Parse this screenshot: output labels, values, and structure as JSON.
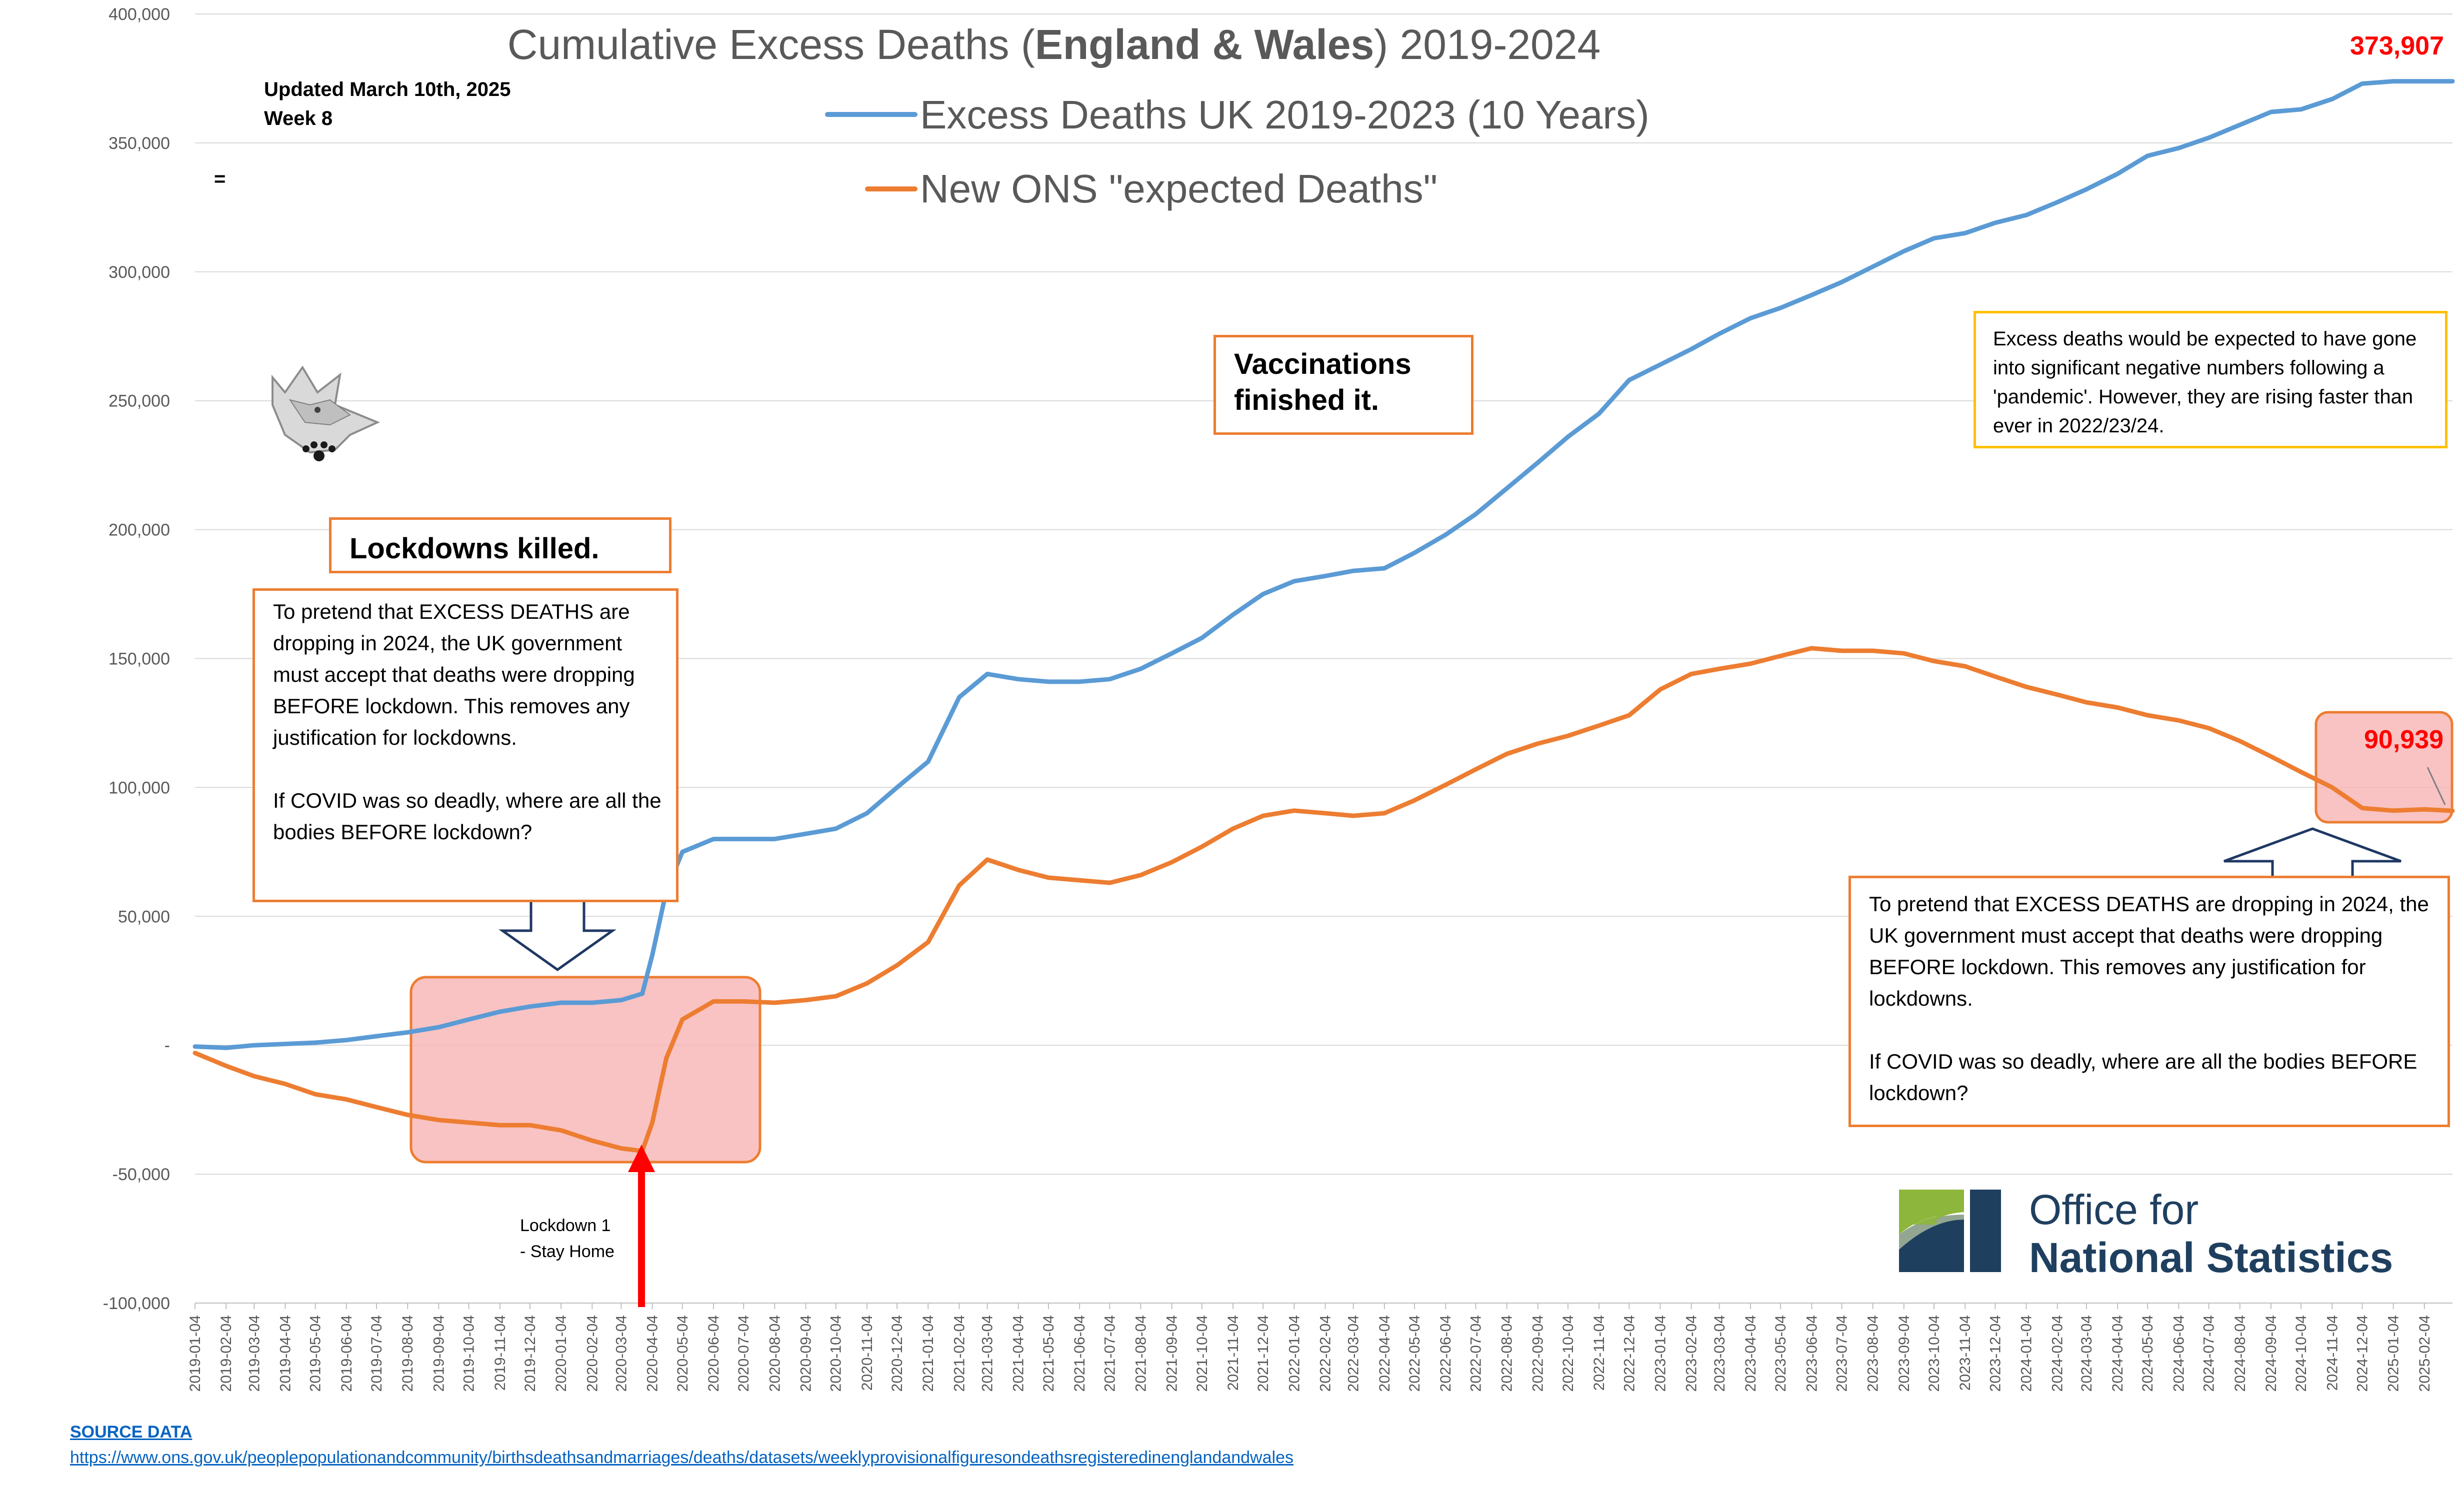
{
  "chart_data": {
    "type": "line",
    "title": "Cumulative Excess Deaths (England & Wales) 2019-2024",
    "title_parts": [
      "Cumulative Excess Deaths (",
      "England & Wales",
      ") 2019-2024"
    ],
    "ylim": [
      -100000,
      400000
    ],
    "y_ticks": [
      "-100,000",
      "-50,000",
      "-",
      "50,000",
      "100,000",
      "150,000",
      "200,000",
      "250,000",
      "300,000",
      "350,000",
      "400,000"
    ],
    "x_ticks": [
      "2019-01-04",
      "2019-02-04",
      "2019-03-04",
      "2019-04-04",
      "2019-05-04",
      "2019-06-04",
      "2019-07-04",
      "2019-08-04",
      "2019-09-04",
      "2019-10-04",
      "2019-11-04",
      "2019-12-04",
      "2020-01-04",
      "2020-02-04",
      "2020-03-04",
      "2020-04-04",
      "2020-05-04",
      "2020-06-04",
      "2020-07-04",
      "2020-08-04",
      "2020-09-04",
      "2020-10-04",
      "2020-11-04",
      "2020-12-04",
      "2021-01-04",
      "2021-02-04",
      "2021-03-04",
      "2021-04-04",
      "2021-05-04",
      "2021-06-04",
      "2021-07-04",
      "2021-08-04",
      "2021-09-04",
      "2021-10-04",
      "2021-11-04",
      "2021-12-04",
      "2022-01-04",
      "2022-02-04",
      "2022-03-04",
      "2022-04-04",
      "2022-05-04",
      "2022-06-04",
      "2022-07-04",
      "2022-08-04",
      "2022-09-04",
      "2022-10-04",
      "2022-11-04",
      "2022-12-04",
      "2023-01-04",
      "2023-02-04",
      "2023-03-04",
      "2023-04-04",
      "2023-05-04",
      "2023-06-04",
      "2023-07-04",
      "2023-08-04",
      "2023-09-04",
      "2023-10-04",
      "2023-11-04",
      "2023-12-04",
      "2024-01-04",
      "2024-02-04",
      "2024-03-04",
      "2024-04-04",
      "2024-05-04",
      "2024-06-04",
      "2024-07-04",
      "2024-08-04",
      "2024-09-04",
      "2024-10-04",
      "2024-11-04",
      "2024-12-04",
      "2025-01-04",
      "2025-02-04"
    ],
    "grid": true,
    "legend": "top-center",
    "series": [
      {
        "name": "Excess Deaths UK 2019-2023 (10 Years)",
        "color": "#5B9BD5",
        "x": [
          "2019-01-04",
          "2019-02-04",
          "2019-03-04",
          "2019-04-04",
          "2019-05-04",
          "2019-06-04",
          "2019-07-04",
          "2019-08-04",
          "2019-09-04",
          "2019-10-04",
          "2019-11-04",
          "2019-12-04",
          "2020-01-04",
          "2020-02-04",
          "2020-03-04",
          "2020-03-25",
          "2020-04-04",
          "2020-04-18",
          "2020-05-04",
          "2020-06-04",
          "2020-07-04",
          "2020-08-04",
          "2020-09-04",
          "2020-10-04",
          "2020-11-04",
          "2020-12-04",
          "2021-01-04",
          "2021-02-04",
          "2021-03-04",
          "2021-04-04",
          "2021-05-04",
          "2021-06-04",
          "2021-07-04",
          "2021-08-04",
          "2021-09-04",
          "2021-10-04",
          "2021-11-04",
          "2021-12-04",
          "2022-01-04",
          "2022-02-04",
          "2022-03-04",
          "2022-04-04",
          "2022-05-04",
          "2022-06-04",
          "2022-07-04",
          "2022-08-04",
          "2022-09-04",
          "2022-10-04",
          "2022-11-04",
          "2022-12-04",
          "2023-01-04",
          "2023-02-04",
          "2023-03-04",
          "2023-04-04",
          "2023-05-04",
          "2023-06-04",
          "2023-07-04",
          "2023-08-04",
          "2023-09-04",
          "2023-10-04",
          "2023-11-04",
          "2023-12-04",
          "2024-01-04",
          "2024-02-04",
          "2024-03-04",
          "2024-04-04",
          "2024-05-04",
          "2024-06-04",
          "2024-07-04",
          "2024-08-04",
          "2024-09-04",
          "2024-10-04",
          "2024-11-04",
          "2024-12-04",
          "2025-01-04",
          "2025-02-04",
          "2025-03-04"
        ],
        "values": [
          -500,
          -1000,
          0,
          500,
          1000,
          2000,
          3500,
          5000,
          7000,
          10000,
          13000,
          15000,
          16500,
          16500,
          17500,
          20000,
          35000,
          60000,
          75000,
          80000,
          80000,
          80000,
          82000,
          84000,
          90000,
          100000,
          110000,
          135000,
          144000,
          142000,
          141000,
          141000,
          142000,
          146000,
          152000,
          158000,
          167000,
          175000,
          180000,
          182000,
          184000,
          185000,
          191000,
          198000,
          206000,
          216000,
          226000,
          236000,
          245000,
          258000,
          264000,
          270000,
          276000,
          282000,
          286000,
          291000,
          296000,
          302000,
          308000,
          313000,
          315000,
          319000,
          322000,
          327000,
          332000,
          338000,
          345000,
          348000,
          352000,
          357000,
          362000,
          363000,
          367000,
          373000,
          373907,
          373907,
          373907
        ]
      },
      {
        "name": "New ONS \"expected Deaths\"",
        "color": "#ED7D31",
        "x": [
          "2019-01-04",
          "2019-02-04",
          "2019-03-04",
          "2019-04-04",
          "2019-05-04",
          "2019-06-04",
          "2019-07-04",
          "2019-08-04",
          "2019-09-04",
          "2019-10-04",
          "2019-11-04",
          "2019-12-04",
          "2020-01-04",
          "2020-02-04",
          "2020-03-04",
          "2020-03-25",
          "2020-04-04",
          "2020-04-18",
          "2020-05-04",
          "2020-06-04",
          "2020-07-04",
          "2020-08-04",
          "2020-09-04",
          "2020-10-04",
          "2020-11-04",
          "2020-12-04",
          "2021-01-04",
          "2021-02-04",
          "2021-03-04",
          "2021-04-04",
          "2021-05-04",
          "2021-06-04",
          "2021-07-04",
          "2021-08-04",
          "2021-09-04",
          "2021-10-04",
          "2021-11-04",
          "2021-12-04",
          "2022-01-04",
          "2022-02-04",
          "2022-03-04",
          "2022-04-04",
          "2022-05-04",
          "2022-06-04",
          "2022-07-04",
          "2022-08-04",
          "2022-09-04",
          "2022-10-04",
          "2022-11-04",
          "2022-12-04",
          "2023-01-04",
          "2023-02-04",
          "2023-03-04",
          "2023-04-04",
          "2023-05-04",
          "2023-06-04",
          "2023-07-04",
          "2023-08-04",
          "2023-09-04",
          "2023-10-04",
          "2023-11-04",
          "2023-12-04",
          "2024-01-04",
          "2024-02-04",
          "2024-03-04",
          "2024-04-04",
          "2024-05-04",
          "2024-06-04",
          "2024-07-04",
          "2024-08-04",
          "2024-09-04",
          "2024-10-04",
          "2024-11-04",
          "2024-12-04",
          "2025-01-04",
          "2025-02-04",
          "2025-03-04"
        ],
        "values": [
          -3000,
          -8000,
          -12000,
          -15000,
          -19000,
          -21000,
          -24000,
          -27000,
          -29000,
          -30000,
          -31000,
          -31000,
          -33000,
          -37000,
          -40000,
          -41000,
          -30000,
          -5000,
          10000,
          17000,
          17000,
          16500,
          17500,
          19000,
          24000,
          31000,
          40000,
          62000,
          72000,
          68000,
          65000,
          64000,
          63000,
          66000,
          71000,
          77000,
          84000,
          89000,
          91000,
          90000,
          89000,
          90000,
          95000,
          101000,
          107000,
          113000,
          117000,
          120000,
          124000,
          128000,
          138000,
          144000,
          146000,
          148000,
          151000,
          154000,
          153000,
          153000,
          152000,
          149000,
          147000,
          143000,
          139000,
          136000,
          133000,
          131000,
          128000,
          126000,
          123000,
          118000,
          112000,
          106000,
          100000,
          92000,
          91000,
          91500,
          90939
        ]
      }
    ],
    "annotations": {
      "updated_line1": "Updated March 10th, 2025",
      "updated_line2": "Week 8",
      "equals_sign": "=",
      "lockdowns_killed": "Lockdowns killed.",
      "vaccinations": "Vaccinations finished it.",
      "left_box_para1": "To pretend that EXCESS DEATHS are dropping in 2024, the UK government must accept that deaths were dropping BEFORE lockdown. This removes any justification for lockdowns.",
      "left_box_para2": "If COVID was so deadly, where are all the bodies BEFORE lockdown?",
      "right_box_para1": "To pretend that EXCESS DEATHS are dropping in 2024, the UK government must accept that deaths were dropping BEFORE lockdown. This removes any justification for lockdowns.",
      "right_box_para2": "If COVID was so deadly, where are all the bodies BEFORE lockdown?",
      "yellow_box": "Excess deaths would be expected to have gone into significant negative numbers following a 'pandemic'. However, they are rising faster than ever in 2022/23/24.",
      "blue_end_value": "373,907",
      "orange_end_value": "90,939",
      "lockdown_line1": "Lockdown 1",
      "lockdown_line2": "- Stay Home",
      "lockdown_date": "2020-03-25"
    },
    "colors": {
      "accent_red": "#FF0000",
      "highlight_fill": "#F8B4B4",
      "yellow_border": "#FFC000",
      "ons_green": "#8DB63C",
      "ons_navy": "#1F3F5F"
    }
  },
  "logo": {
    "ons_line1": "Office for",
    "ons_line2": "National Statistics",
    "wolf_icon": "wolf-head-icon"
  },
  "source": {
    "title": "SOURCE DATA",
    "url": "https://www.ons.gov.uk/peoplepopulationandcommunity/birthsdeathsandmarriages/deaths/datasets/weeklyprovisionalfiguresondeathsregisteredinenglandandwales"
  }
}
